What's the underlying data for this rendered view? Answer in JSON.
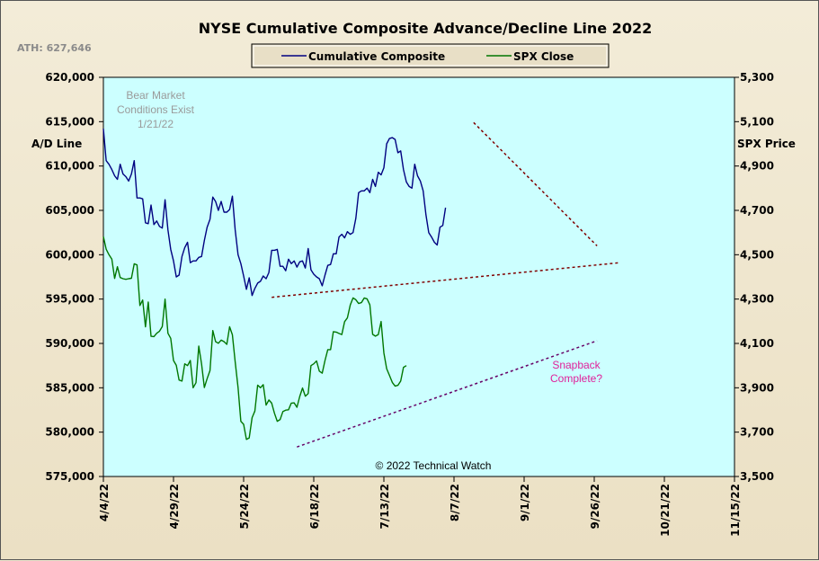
{
  "title": "NYSE Cumulative  Composite  Advance/Decline  Line  2022",
  "ath_label": "ATH: 627,646",
  "copyright": "© 2022 Technical  Watch",
  "annotations": {
    "bear_lines": [
      "Bear Market",
      "Conditions  Exist",
      "1/21/22"
    ],
    "snapback_lines": [
      "Snapback",
      "Complete?"
    ]
  },
  "colors": {
    "plot_bg": "#ccffff",
    "ad_line": "#000080",
    "spx_line": "#007700",
    "trendline": "#800000",
    "spx_trendline": "#660066"
  },
  "chart_data": {
    "type": "line",
    "title": "NYSE Cumulative  Composite  Advance/Decline  Line  2022",
    "ylabel_left": "A/D Line",
    "ylabel_right": "SPX Price",
    "xlim_days": [
      94,
      319
    ],
    "ylim_left": [
      575000,
      620000
    ],
    "ylim_right": [
      3500,
      5300
    ],
    "x_tick_labels": [
      "4/4/22",
      "4/29/22",
      "5/24/22",
      "6/18/22",
      "7/13/22",
      "8/7/22",
      "9/1/22",
      "9/26/22",
      "10/21/22",
      "11/15/22"
    ],
    "x_tick_days": [
      94,
      119,
      144,
      169,
      194,
      219,
      244,
      269,
      294,
      319
    ],
    "y_left_ticks": [
      "575,000",
      "580,000",
      "585,000",
      "590,000",
      "595,000",
      "600,000",
      "605,000",
      "610,000",
      "615,000",
      "620,000"
    ],
    "y_right_ticks": [
      "3,500",
      "3,700",
      "3,900",
      "4,100",
      "4,300",
      "4,500",
      "4,700",
      "4,900",
      "5,100",
      "5,300"
    ],
    "legend": [
      "Cumulative Composite",
      "SPX Close"
    ],
    "series": [
      {
        "name": "Cumulative Composite",
        "axis": "left",
        "points": [
          [
            94,
            614200
          ],
          [
            95,
            610600
          ],
          [
            96,
            610200
          ],
          [
            97,
            609600
          ],
          [
            98,
            608900
          ],
          [
            99,
            608500
          ],
          [
            100,
            610200
          ],
          [
            101,
            609100
          ],
          [
            102,
            608800
          ],
          [
            103,
            608300
          ],
          [
            104,
            609100
          ],
          [
            105,
            610600
          ],
          [
            106,
            606400
          ],
          [
            107,
            606400
          ],
          [
            108,
            606300
          ],
          [
            109,
            603600
          ],
          [
            110,
            603500
          ],
          [
            111,
            605600
          ],
          [
            112,
            603400
          ],
          [
            113,
            603800
          ],
          [
            114,
            603200
          ],
          [
            115,
            603000
          ],
          [
            116,
            606200
          ],
          [
            117,
            602800
          ],
          [
            118,
            600600
          ],
          [
            119,
            599300
          ],
          [
            120,
            597500
          ],
          [
            121,
            597700
          ],
          [
            122,
            599800
          ],
          [
            123,
            600800
          ],
          [
            124,
            601400
          ],
          [
            125,
            599100
          ],
          [
            126,
            599300
          ],
          [
            127,
            599300
          ],
          [
            128,
            599700
          ],
          [
            129,
            599800
          ],
          [
            130,
            601600
          ],
          [
            131,
            603100
          ],
          [
            132,
            604000
          ],
          [
            133,
            606500
          ],
          [
            134,
            606000
          ],
          [
            135,
            605000
          ],
          [
            136,
            606000
          ],
          [
            137,
            604800
          ],
          [
            138,
            604800
          ],
          [
            139,
            605100
          ],
          [
            140,
            606600
          ],
          [
            141,
            602800
          ],
          [
            142,
            600000
          ],
          [
            143,
            599000
          ],
          [
            144,
            597600
          ],
          [
            145,
            596100
          ],
          [
            146,
            597400
          ],
          [
            147,
            595400
          ],
          [
            148,
            596200
          ],
          [
            149,
            596800
          ],
          [
            150,
            597000
          ],
          [
            151,
            597600
          ],
          [
            152,
            597300
          ],
          [
            153,
            598000
          ],
          [
            154,
            600500
          ],
          [
            155,
            600500
          ],
          [
            156,
            600600
          ],
          [
            157,
            598700
          ],
          [
            158,
            598700
          ],
          [
            159,
            598200
          ],
          [
            160,
            599500
          ],
          [
            161,
            599000
          ],
          [
            162,
            599300
          ],
          [
            163,
            598600
          ],
          [
            164,
            599200
          ],
          [
            165,
            599300
          ],
          [
            166,
            598500
          ],
          [
            167,
            600700
          ],
          [
            168,
            598300
          ],
          [
            169,
            597800
          ],
          [
            170,
            597500
          ],
          [
            171,
            597300
          ],
          [
            172,
            596500
          ],
          [
            173,
            597700
          ],
          [
            174,
            598800
          ],
          [
            175,
            598900
          ],
          [
            176,
            600100
          ],
          [
            177,
            600100
          ],
          [
            178,
            602000
          ],
          [
            179,
            602300
          ],
          [
            180,
            601900
          ],
          [
            181,
            602600
          ],
          [
            182,
            602300
          ],
          [
            183,
            602500
          ],
          [
            184,
            604100
          ],
          [
            185,
            607000
          ],
          [
            186,
            607200
          ],
          [
            187,
            607200
          ],
          [
            188,
            607500
          ],
          [
            189,
            607000
          ],
          [
            190,
            608500
          ],
          [
            191,
            607700
          ],
          [
            192,
            609300
          ],
          [
            193,
            609000
          ],
          [
            194,
            609800
          ],
          [
            195,
            612500
          ],
          [
            196,
            613100
          ],
          [
            197,
            613200
          ],
          [
            198,
            613000
          ],
          [
            199,
            611500
          ],
          [
            200,
            611700
          ],
          [
            201,
            609600
          ],
          [
            202,
            608200
          ],
          [
            203,
            607700
          ],
          [
            204,
            607500
          ],
          [
            205,
            610200
          ],
          [
            206,
            608900
          ],
          [
            207,
            608300
          ],
          [
            208,
            607200
          ],
          [
            209,
            604500
          ],
          [
            210,
            602500
          ],
          [
            211,
            602000
          ],
          [
            212,
            601400
          ],
          [
            213,
            601100
          ],
          [
            214,
            603100
          ],
          [
            215,
            603300
          ],
          [
            216,
            605300
          ]
        ]
      },
      {
        "name": "SPX Close",
        "axis": "right",
        "points": [
          [
            94,
            4582
          ],
          [
            95,
            4525
          ],
          [
            96,
            4500
          ],
          [
            97,
            4480
          ],
          [
            98,
            4393
          ],
          [
            99,
            4446
          ],
          [
            100,
            4397
          ],
          [
            101,
            4392
          ],
          [
            102,
            4389
          ],
          [
            103,
            4392
          ],
          [
            104,
            4394
          ],
          [
            105,
            4459
          ],
          [
            106,
            4454
          ],
          [
            107,
            4271
          ],
          [
            108,
            4296
          ],
          [
            109,
            4175
          ],
          [
            110,
            4287
          ],
          [
            111,
            4132
          ],
          [
            112,
            4131
          ],
          [
            113,
            4146
          ],
          [
            114,
            4155
          ],
          [
            115,
            4176
          ],
          [
            116,
            4300
          ],
          [
            117,
            4146
          ],
          [
            118,
            4123
          ],
          [
            119,
            4023
          ],
          [
            120,
            4001
          ],
          [
            121,
            3935
          ],
          [
            122,
            3930
          ],
          [
            123,
            4008
          ],
          [
            124,
            4000
          ],
          [
            125,
            4023
          ],
          [
            126,
            3900
          ],
          [
            127,
            3923
          ],
          [
            128,
            4088
          ],
          [
            129,
            4008
          ],
          [
            130,
            3901
          ],
          [
            131,
            3941
          ],
          [
            132,
            3978
          ],
          [
            133,
            4158
          ],
          [
            134,
            4108
          ],
          [
            135,
            4101
          ],
          [
            136,
            4115
          ],
          [
            137,
            4108
          ],
          [
            138,
            4096
          ],
          [
            139,
            4175
          ],
          [
            140,
            4139
          ],
          [
            141,
            4017
          ],
          [
            142,
            3901
          ],
          [
            143,
            3749
          ],
          [
            144,
            3735
          ],
          [
            145,
            3667
          ],
          [
            146,
            3674
          ],
          [
            147,
            3765
          ],
          [
            148,
            3795
          ],
          [
            149,
            3912
          ],
          [
            150,
            3900
          ],
          [
            151,
            3914
          ],
          [
            152,
            3822
          ],
          [
            153,
            3845
          ],
          [
            154,
            3831
          ],
          [
            155,
            3785
          ],
          [
            156,
            3749
          ],
          [
            157,
            3757
          ],
          [
            158,
            3793
          ],
          [
            159,
            3799
          ],
          [
            160,
            3801
          ],
          [
            161,
            3831
          ],
          [
            162,
            3832
          ],
          [
            163,
            3812
          ],
          [
            164,
            3861
          ],
          [
            165,
            3899
          ],
          [
            166,
            3862
          ],
          [
            167,
            3874
          ],
          [
            168,
            4000
          ],
          [
            169,
            4008
          ],
          [
            170,
            4021
          ],
          [
            171,
            3975
          ],
          [
            172,
            3966
          ],
          [
            173,
            4023
          ],
          [
            174,
            4072
          ],
          [
            175,
            4072
          ],
          [
            176,
            4153
          ],
          [
            177,
            4151
          ],
          [
            178,
            4145
          ],
          [
            179,
            4140
          ],
          [
            180,
            4198
          ],
          [
            181,
            4215
          ],
          [
            182,
            4273
          ],
          [
            183,
            4305
          ],
          [
            184,
            4297
          ],
          [
            185,
            4280
          ],
          [
            186,
            4284
          ],
          [
            187,
            4305
          ],
          [
            188,
            4301
          ],
          [
            189,
            4274
          ],
          [
            190,
            4141
          ],
          [
            191,
            4133
          ],
          [
            192,
            4140
          ],
          [
            193,
            4199
          ],
          [
            194,
            4057
          ],
          [
            195,
            3986
          ],
          [
            196,
            3956
          ],
          [
            197,
            3924
          ],
          [
            198,
            3908
          ],
          [
            199,
            3911
          ],
          [
            200,
            3930
          ],
          [
            201,
            3992
          ],
          [
            202,
            4000
          ]
        ]
      }
    ],
    "trendlines": [
      {
        "name": "ad-resistance",
        "axis": "left",
        "from": [
          226,
          614900
        ],
        "to": [
          270,
          601000
        ]
      },
      {
        "name": "ad-support",
        "axis": "left",
        "from": [
          154,
          595200
        ],
        "to": [
          278,
          599100
        ]
      },
      {
        "name": "spx-support",
        "axis": "right",
        "from": [
          163,
          3633
        ],
        "to": [
          270,
          4112
        ]
      }
    ]
  }
}
